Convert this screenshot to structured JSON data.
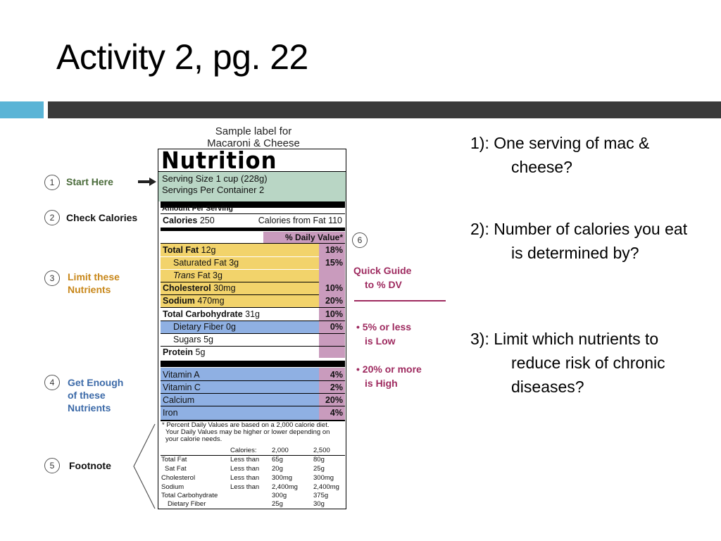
{
  "slide": {
    "title": "Activity 2, pg. 22"
  },
  "label": {
    "caption_line1": "Sample label for",
    "caption_line2": "Macaroni & Cheese",
    "title": "Nutrition Facts",
    "serving_size": "Serving Size 1 cup (228g)",
    "servings_per_container": "Servings Per Container  2",
    "amount_per_serving": "Amount Per Serving",
    "calories_label": "Calories",
    "calories_value": "250",
    "calories_from_fat": "Calories from Fat 110",
    "daily_value_header": "% Daily Value*",
    "rows": [
      {
        "label": "Total Fat",
        "amount": "12g",
        "pct": "18%"
      },
      {
        "label": "Saturated Fat",
        "amount": "3g",
        "pct": "15%"
      },
      {
        "label": "Trans",
        "amount": "Fat 3g",
        "pct": ""
      },
      {
        "label": "Cholesterol",
        "amount": "30mg",
        "pct": "10%"
      },
      {
        "label": "Sodium",
        "amount": "470mg",
        "pct": "20%"
      },
      {
        "label": "Total Carbohydrate",
        "amount": "31g",
        "pct": "10%"
      },
      {
        "label": "Dietary Fiber",
        "amount": "0g",
        "pct": "0%"
      },
      {
        "label": "Sugars",
        "amount": "5g",
        "pct": ""
      },
      {
        "label": "Protein",
        "amount": "5g",
        "pct": ""
      }
    ],
    "vitamins": [
      {
        "label": "Vitamin A",
        "pct": "4%"
      },
      {
        "label": "Vitamin C",
        "pct": "2%"
      },
      {
        "label": "Calcium",
        "pct": "20%"
      },
      {
        "label": "Iron",
        "pct": "4%"
      }
    ],
    "footnote_line1": "* Percent Daily Values are based on a 2,000 calorie diet.",
    "footnote_line2": "Your Daily Values may be higher or lower depending on",
    "footnote_line3": "your calorie needs.",
    "footnote_table": {
      "header": [
        "Calories:",
        "2,000",
        "2,500"
      ],
      "rows": [
        [
          "Total Fat",
          "Less than",
          "65g",
          "80g"
        ],
        [
          "Sat Fat",
          "Less than",
          "20g",
          "25g"
        ],
        [
          "Cholesterol",
          "Less than",
          "300mg",
          "300mg"
        ],
        [
          "Sodium",
          "Less than",
          "2,400mg",
          "2,400mg"
        ],
        [
          "Total Carbohydrate",
          "",
          "300g",
          "375g"
        ],
        [
          "Dietary Fiber",
          "",
          "25g",
          "30g"
        ]
      ]
    }
  },
  "steps": [
    {
      "num": "1",
      "label": "Start Here",
      "color": "#4a6b3a"
    },
    {
      "num": "2",
      "label": "Check Calories",
      "color": "#111111"
    },
    {
      "num": "3",
      "label_line1": "Limit these",
      "label_line2": "Nutrients",
      "color": "#c8871a"
    },
    {
      "num": "4",
      "label_line1": "Get Enough",
      "label_line2": "of these",
      "label_line3": "Nutrients",
      "color": "#3c6aa8"
    },
    {
      "num": "5",
      "label": "Footnote",
      "color": "#111111"
    },
    {
      "num": "6"
    }
  ],
  "guide": {
    "title_line1": "Quick Guide",
    "title_line2": "to % DV",
    "item1_line1": "• 5% or less",
    "item1_line2": "is Low",
    "item2_line1": "• 20% or more",
    "item2_line2": "is High"
  },
  "questions": [
    {
      "text": "1): One serving of mac & cheese?"
    },
    {
      "text": "2):  Number of calories you eat is determined by?"
    },
    {
      "text": "3):  Limit which nutrients to reduce risk of chronic diseases?"
    }
  ],
  "colors": {
    "accent_blue": "#5ab4d6",
    "band_gray": "#3a3a3a",
    "serving_green": "#b9d6c5",
    "limit_yellow": "#f2d36b",
    "enough_blue": "#8fb0e3",
    "dv_purple": "#c99bbd",
    "guide_magenta": "#9e2a5f"
  }
}
